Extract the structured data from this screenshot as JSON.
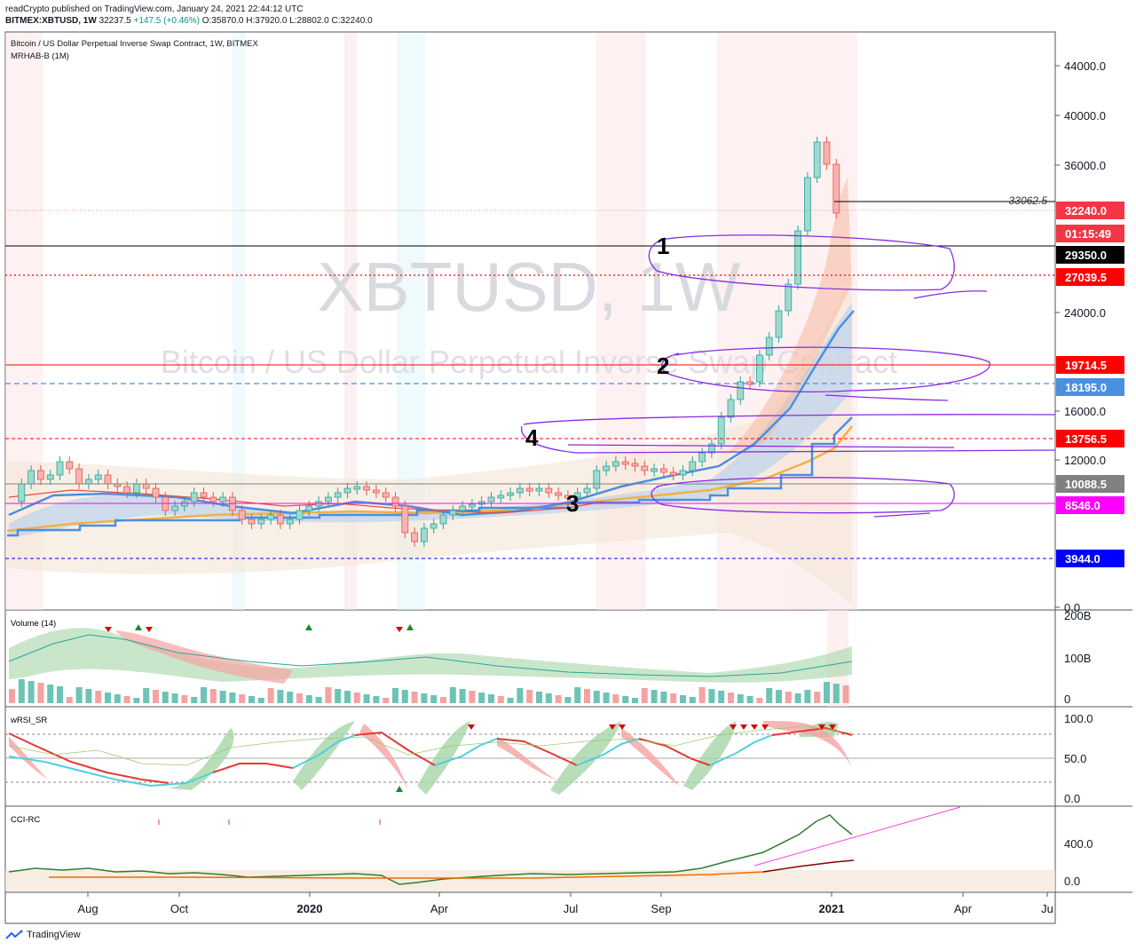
{
  "header": {
    "published": "readCrypto published on TradingView.com, January 24, 2021 22:44:12 UTC",
    "symbol": "BITMEX:XBTUSD, 1W",
    "price": "32237.5",
    "change": "+147.5 (+0.46%)",
    "ohlc": {
      "o": "O:35870.0",
      "h": "H:37920.0",
      "l": "L:28802.0",
      "c": "C:32240.0"
    }
  },
  "main_pane": {
    "legend_title": "Bitcoin / US Dollar Perpetual Inverse Swap Contract, 1W, BITMEX",
    "legend_indicator": "MRHAB-B (1M)",
    "watermark_symbol": "XBTUSD, 1W",
    "watermark_name": "Bitcoin / US Dollar Perpetual Inverse Swap Contract",
    "annotations": [
      "1",
      "2",
      "3",
      "4"
    ],
    "line_label": "33062.5"
  },
  "price_labels": [
    {
      "value": "32240.0",
      "color": "#f23645"
    },
    {
      "value": "01:15:49",
      "color": "#f23645"
    },
    {
      "value": "29350.0",
      "color": "#000000"
    },
    {
      "value": "27039.5",
      "color": "#ff0000"
    },
    {
      "value": "19714.5",
      "color": "#ff0000"
    },
    {
      "value": "18195.0",
      "color": "#4a90e2"
    },
    {
      "value": "13756.5",
      "color": "#ff0000"
    },
    {
      "value": "10088.5",
      "color": "#808080"
    },
    {
      "value": "8546.0",
      "color": "#ff00ff"
    },
    {
      "value": "3944.0",
      "color": "#0000ff"
    }
  ],
  "panes": {
    "volume": {
      "label": "Volume (14)",
      "ticks": [
        "200B",
        "100B",
        "0"
      ]
    },
    "rsi": {
      "label": "wRSI_SR",
      "ticks": [
        "100.0",
        "50.0",
        "0.0"
      ]
    },
    "cci": {
      "label": "CCI-RC",
      "ticks": [
        "400.0",
        "0.0"
      ]
    }
  },
  "footer": {
    "brand": "TradingView"
  },
  "chart_data": {
    "type": "candlestick",
    "timeframe": "1W",
    "x_ticks": [
      "Aug",
      "Oct",
      "2020",
      "Apr",
      "Jul",
      "Sep",
      "2021",
      "Apr",
      "Ju"
    ],
    "y_ticks": [
      "44000.0",
      "40000.0",
      "36000.0",
      "24000.0",
      "16000.0",
      "12000.0",
      "0.0"
    ],
    "ylim": [
      0,
      46000
    ],
    "ohlc_current": {
      "open": 35870.0,
      "high": 37920.0,
      "low": 28802.0,
      "close": 32240.0
    },
    "levels": [
      {
        "value": 33062.5,
        "style": "solid",
        "color": "#000000"
      },
      {
        "value": 29350.0,
        "style": "solid",
        "color": "#000000"
      },
      {
        "value": 27039.5,
        "style": "dotted",
        "color": "#ff0000"
      },
      {
        "value": 19714.5,
        "style": "solid",
        "color": "#ff0000"
      },
      {
        "value": 18195.0,
        "style": "dashed",
        "color": "#4a90e2"
      },
      {
        "value": 13756.5,
        "style": "dashed",
        "color": "#ff0000"
      },
      {
        "value": 10088.5,
        "style": "solid",
        "color": "#808080"
      },
      {
        "value": 8546.0,
        "style": "solid",
        "color": "#ff00ff"
      },
      {
        "value": 3944.0,
        "style": "dashed",
        "color": "#0000ff"
      }
    ]
  }
}
